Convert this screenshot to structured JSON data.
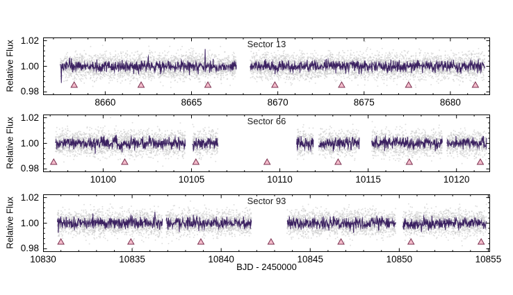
{
  "labels": {
    "ylabel": "Relative Flux",
    "xlabel": "BJD - 2450000"
  },
  "style": {
    "background": "#ffffff",
    "scatter_color": "#c6c6c6",
    "scatter_alpha": 0.55,
    "line_color": "#3b2161",
    "marker_fill": "#f3bbca",
    "marker_edge": "#7b3150",
    "axis_color": "#000000",
    "text_color": "#000000"
  },
  "chart_data": [
    {
      "type": "scatter+line",
      "sector_label": "Sector 13",
      "xlim": [
        8656.4,
        8682.3
      ],
      "xticks": [
        8660,
        8665,
        8670,
        8675,
        8680
      ],
      "xtick_labels": [
        "8660",
        "8665",
        "8670",
        "8675",
        "8680"
      ],
      "x_minor_step": 1,
      "ylim": [
        0.9775,
        1.0225
      ],
      "yticks": [
        0.98,
        1.0,
        1.02
      ],
      "ytick_labels": [
        "0.98",
        "1.00",
        "1.02"
      ],
      "y_minor_step": 0.004,
      "baseline_flux": 1.0,
      "segments": [
        [
          8657.4,
          8667.6
        ],
        [
          8668.4,
          8682.0
        ]
      ],
      "transit_markers": [
        8658.2,
        8662.08,
        8665.95,
        8669.83,
        8673.7,
        8677.58,
        8681.45
      ],
      "marker_y": 0.9855,
      "line_features": [
        {
          "x": 8657.45,
          "y": 0.987
        },
        {
          "x": 8661.95,
          "y": 0.9937
        },
        {
          "x": 8665.8,
          "y": 1.0135
        }
      ],
      "scatter_sigma": 0.0048,
      "line_sigma": 0.0022,
      "seed": 101
    },
    {
      "type": "scatter+line",
      "sector_label": "Sector 66",
      "xlim": [
        10096.6,
        10121.9
      ],
      "xticks": [
        10100,
        10105,
        10110,
        10115,
        10120
      ],
      "xtick_labels": [
        "10100",
        "10105",
        "10110",
        "10115",
        "10120"
      ],
      "x_minor_step": 1,
      "ylim": [
        0.9775,
        1.0225
      ],
      "yticks": [
        0.98,
        1.0,
        1.02
      ],
      "ytick_labels": [
        "0.98",
        "1.00",
        "1.02"
      ],
      "y_minor_step": 0.004,
      "baseline_flux": 1.0,
      "segments": [
        [
          10097.3,
          10104.65
        ],
        [
          10105.05,
          10106.5
        ],
        [
          10110.95,
          10111.9
        ],
        [
          10112.2,
          10114.5
        ],
        [
          10115.2,
          10119.2
        ],
        [
          10119.45,
          10121.7
        ]
      ],
      "transit_markers": [
        10097.2,
        10101.22,
        10105.25,
        10109.28,
        10113.3,
        10117.33,
        10121.35
      ],
      "marker_y": 0.9855,
      "line_features": [
        {
          "x": 10105.1,
          "y": 0.994
        },
        {
          "x": 10110.98,
          "y": 0.9955
        }
      ],
      "scatter_sigma": 0.0048,
      "line_sigma": 0.0022,
      "seed": 202
    },
    {
      "type": "scatter+line",
      "sector_label": "Sector 93",
      "xlim": [
        10830.0,
        10855.1
      ],
      "xticks": [
        10830,
        10835,
        10840,
        10845,
        10850,
        10855
      ],
      "xtick_labels": [
        "10830",
        "10835",
        "10840",
        "10845",
        "10850",
        "10855"
      ],
      "x_minor_step": 1,
      "ylim": [
        0.9775,
        1.0225
      ],
      "yticks": [
        0.98,
        1.0,
        1.02
      ],
      "ytick_labels": [
        "0.98",
        "1.00",
        "1.02"
      ],
      "y_minor_step": 0.004,
      "baseline_flux": 1.0,
      "segments": [
        [
          10830.8,
          10836.7
        ],
        [
          10836.9,
          10841.7
        ],
        [
          10843.7,
          10849.8
        ],
        [
          10850.2,
          10854.9
        ]
      ],
      "transit_markers": [
        10831.0,
        10834.93,
        10838.86,
        10842.8,
        10846.73,
        10850.66,
        10854.6
      ],
      "marker_y": 0.9855,
      "line_features": [
        {
          "x": 10830.85,
          "y": 0.9925
        },
        {
          "x": 10832.8,
          "y": 1.0075
        }
      ],
      "scatter_sigma": 0.0048,
      "line_sigma": 0.0022,
      "seed": 303
    }
  ]
}
